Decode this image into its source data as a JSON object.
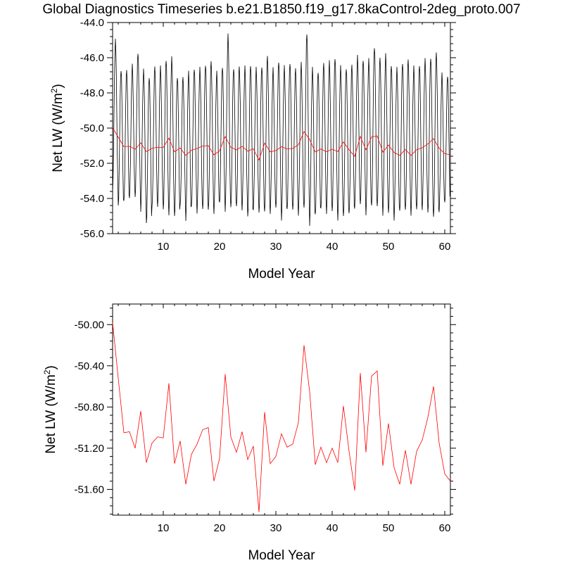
{
  "title": "Global Diagnostics Timeseries b.e21.B1850.f19_g17.8kaControl-2deg_proto.007",
  "colors": {
    "monthly": "#000000",
    "annual": "#ff0000"
  },
  "chart_data": [
    {
      "type": "line",
      "xlabel": "Model Year",
      "ylabel_main": "Net LW (W/m",
      "ylabel_sup": "2",
      "ylabel_tail": ")",
      "xlim": [
        1,
        61
      ],
      "ylim": [
        -56.0,
        -44.0
      ],
      "xticks": [
        10,
        20,
        30,
        40,
        50,
        60
      ],
      "xtick_labels": [
        "10",
        "20",
        "30",
        "40",
        "50",
        "60"
      ],
      "yticks": [
        -56.0,
        -54.0,
        -52.0,
        -50.0,
        -48.0,
        -46.0,
        -44.0
      ],
      "ytick_labels": [
        "-56.0",
        "-54.0",
        "-52.0",
        "-50.0",
        "-48.0",
        "-46.0",
        "-44.0"
      ],
      "series": [
        {
          "kind": "monthly",
          "color": "#000000",
          "peaks": [
            -45.0,
            -46.6,
            -46.7,
            -46.5,
            -45.7,
            -46.7,
            -47.0,
            -46.5,
            -46.6,
            -46.1,
            -46.0,
            -47.0,
            -47.1,
            -46.9,
            -46.6,
            -46.6,
            -46.3,
            -46.2,
            -46.9,
            -46.5,
            -44.7,
            -46.5,
            -46.5,
            -46.6,
            -46.4,
            -46.6,
            -46.4,
            -45.9,
            -46.7,
            -46.2,
            -46.5,
            -46.2,
            -46.6,
            -46.4,
            -44.6,
            -46.6,
            -46.7,
            -46.3,
            -46.3,
            -46.0,
            -46.5,
            -46.5,
            -46.4,
            -46.0,
            -46.1,
            -46.1,
            -45.3,
            -46.0,
            -45.9,
            -46.4,
            -46.6,
            -46.2,
            -46.1,
            -46.6,
            -46.4,
            -46.1,
            -45.9,
            -45.7,
            -47.0,
            -47.0
          ],
          "troughs": [
            -53.5,
            -54.4,
            -54.3,
            -53.9,
            -54.0,
            -54.6,
            -55.4,
            -54.6,
            -54.4,
            -54.7,
            -54.8,
            -55.0,
            -54.5,
            -55.2,
            -54.5,
            -54.7,
            -54.6,
            -54.8,
            -54.8,
            -54.3,
            -54.6,
            -54.5,
            -54.6,
            -54.6,
            -55.1,
            -54.5,
            -54.8,
            -54.9,
            -54.8,
            -54.6,
            -55.1,
            -54.6,
            -54.8,
            -54.9,
            -54.6,
            -55.4,
            -54.9,
            -54.7,
            -54.8,
            -54.8,
            -55.1,
            -55.0,
            -55.0,
            -54.5,
            -54.4,
            -54.8,
            -54.4,
            -54.6,
            -54.9,
            -54.9,
            -55.1,
            -54.7,
            -54.8,
            -54.9,
            -54.7,
            -54.5,
            -54.8,
            -55.2,
            -54.7,
            -54.3
          ]
        },
        {
          "kind": "annual",
          "color": "#ff0000",
          "x": [
            1,
            2,
            3,
            4,
            5,
            6,
            7,
            8,
            9,
            10,
            11,
            12,
            13,
            14,
            15,
            16,
            17,
            18,
            19,
            20,
            21,
            22,
            23,
            24,
            25,
            26,
            27,
            28,
            29,
            30,
            31,
            32,
            33,
            34,
            35,
            36,
            37,
            38,
            39,
            40,
            41,
            42,
            43,
            44,
            45,
            46,
            47,
            48,
            49,
            50,
            51,
            52,
            53,
            54,
            55,
            56,
            57,
            58,
            59,
            60,
            61
          ],
          "y": [
            -49.98,
            -50.52,
            -51.05,
            -51.04,
            -51.2,
            -50.84,
            -51.34,
            -51.15,
            -51.09,
            -51.1,
            -50.57,
            -51.35,
            -51.13,
            -51.55,
            -51.26,
            -51.16,
            -51.02,
            -51.0,
            -51.52,
            -51.3,
            -50.48,
            -51.09,
            -51.24,
            -51.04,
            -51.31,
            -51.18,
            -51.82,
            -50.85,
            -51.35,
            -51.28,
            -51.06,
            -51.19,
            -51.16,
            -50.95,
            -50.2,
            -50.65,
            -51.36,
            -51.19,
            -51.34,
            -51.2,
            -51.34,
            -50.79,
            -51.23,
            -51.61,
            -50.47,
            -51.24,
            -50.5,
            -50.45,
            -51.37,
            -50.96,
            -51.39,
            -51.55,
            -51.22,
            -51.55,
            -51.23,
            -51.12,
            -50.9,
            -50.6,
            -51.15,
            -51.45,
            -51.52
          ]
        }
      ]
    },
    {
      "type": "line",
      "xlabel": "Model Year",
      "ylabel_main": "Net LW (W/m",
      "ylabel_sup": "2",
      "ylabel_tail": ")",
      "xlim": [
        1,
        61
      ],
      "ylim": [
        -51.85,
        -49.8
      ],
      "xticks": [
        10,
        20,
        30,
        40,
        50,
        60
      ],
      "xtick_labels": [
        "10",
        "20",
        "30",
        "40",
        "50",
        "60"
      ],
      "yticks": [
        -51.6,
        -51.2,
        -50.8,
        -50.4,
        -50.0
      ],
      "ytick_labels": [
        "-51.60",
        "-51.20",
        "-50.80",
        "-50.40",
        "-50.00"
      ],
      "series": [
        {
          "kind": "annual",
          "color": "#ff0000",
          "x": [
            1,
            2,
            3,
            4,
            5,
            6,
            7,
            8,
            9,
            10,
            11,
            12,
            13,
            14,
            15,
            16,
            17,
            18,
            19,
            20,
            21,
            22,
            23,
            24,
            25,
            26,
            27,
            28,
            29,
            30,
            31,
            32,
            33,
            34,
            35,
            36,
            37,
            38,
            39,
            40,
            41,
            42,
            43,
            44,
            45,
            46,
            47,
            48,
            49,
            50,
            51,
            52,
            53,
            54,
            55,
            56,
            57,
            58,
            59,
            60,
            61
          ],
          "y": [
            -49.98,
            -50.52,
            -51.05,
            -51.04,
            -51.2,
            -50.84,
            -51.34,
            -51.15,
            -51.09,
            -51.1,
            -50.57,
            -51.35,
            -51.13,
            -51.55,
            -51.26,
            -51.16,
            -51.02,
            -51.0,
            -51.52,
            -51.3,
            -50.48,
            -51.09,
            -51.24,
            -51.04,
            -51.31,
            -51.18,
            -51.82,
            -50.85,
            -51.35,
            -51.28,
            -51.06,
            -51.19,
            -51.16,
            -50.95,
            -50.2,
            -50.65,
            -51.36,
            -51.19,
            -51.34,
            -51.2,
            -51.34,
            -50.79,
            -51.23,
            -51.61,
            -50.47,
            -51.24,
            -50.5,
            -50.45,
            -51.37,
            -50.96,
            -51.39,
            -51.55,
            -51.22,
            -51.55,
            -51.23,
            -51.12,
            -50.9,
            -50.6,
            -51.15,
            -51.45,
            -51.52
          ]
        }
      ]
    }
  ]
}
